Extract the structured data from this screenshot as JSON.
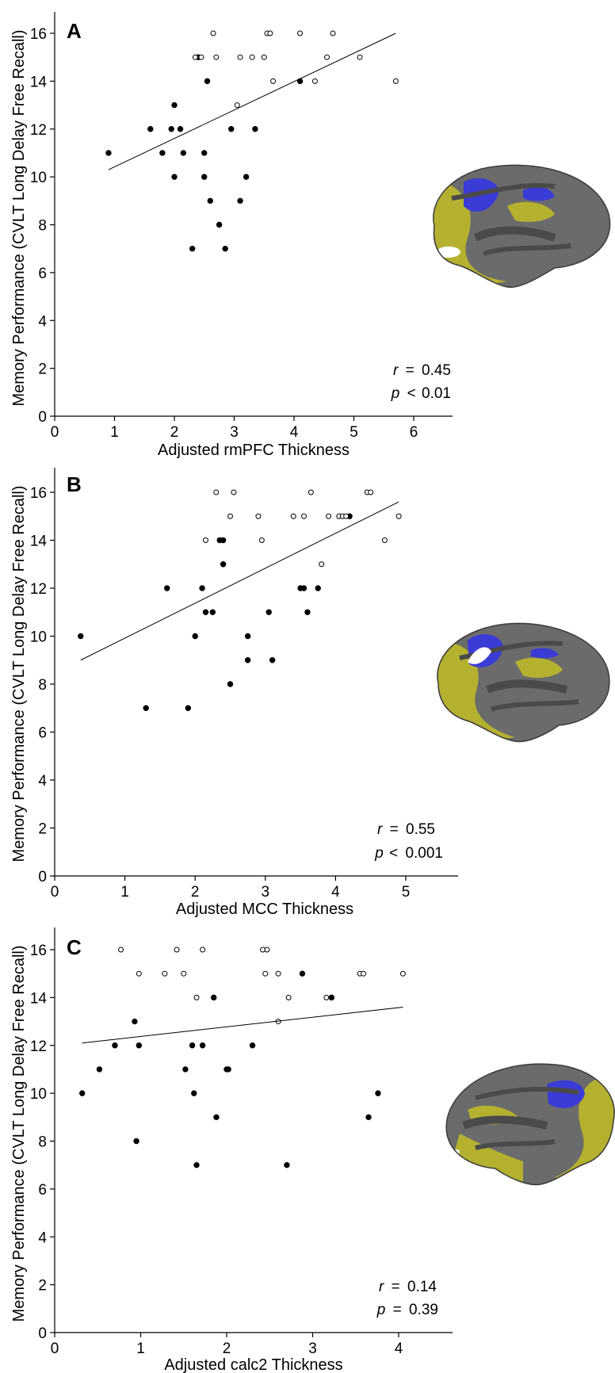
{
  "colors": {
    "filled_point": "#000000",
    "open_point": "#ffffff",
    "fit_line": "#000000",
    "brain_gray": "#6b6b6b",
    "brain_dark_gray": "#4a4a4a",
    "brain_yellow": "#b5b130",
    "brain_blue": "#3b3bd6",
    "brain_white": "#ffffff"
  },
  "chart_data": [
    {
      "type": "scatter",
      "panel": "A",
      "xlabel": "Adjusted rmPFC Thickness",
      "ylabel": "Memory Performance (CVLT Long Delay Free Recall)",
      "xlim": [
        0,
        6
      ],
      "ylim": [
        0,
        17
      ],
      "xticks": [
        0,
        1,
        2,
        3,
        4,
        5,
        6
      ],
      "yticks": [
        0,
        2,
        4,
        6,
        8,
        10,
        12,
        14,
        16
      ],
      "stats": {
        "r": "0.45",
        "r_prefix": "r",
        "r_sep": "=",
        "p": "0.01",
        "p_prefix": "p",
        "p_sep": "<"
      },
      "regression": {
        "x": [
          0.9,
          5.7
        ],
        "y": [
          10.3,
          16.0
        ]
      },
      "series": [
        {
          "marker": "filled",
          "points": [
            [
              0.9,
              11
            ],
            [
              1.6,
              12
            ],
            [
              1.8,
              11
            ],
            [
              1.95,
              12
            ],
            [
              2.0,
              13
            ],
            [
              2.0,
              10
            ],
            [
              2.1,
              12
            ],
            [
              2.15,
              11
            ],
            [
              2.3,
              7
            ],
            [
              2.4,
              15
            ],
            [
              2.5,
              11
            ],
            [
              2.5,
              10
            ],
            [
              2.55,
              14
            ],
            [
              2.6,
              9
            ],
            [
              2.75,
              8
            ],
            [
              2.85,
              7
            ],
            [
              2.95,
              12
            ],
            [
              3.1,
              9
            ],
            [
              3.2,
              10
            ],
            [
              3.35,
              12
            ],
            [
              4.1,
              14
            ]
          ]
        },
        {
          "marker": "open",
          "points": [
            [
              2.35,
              15
            ],
            [
              2.45,
              15
            ],
            [
              2.65,
              16
            ],
            [
              2.7,
              15
            ],
            [
              3.05,
              13
            ],
            [
              3.1,
              15
            ],
            [
              3.3,
              15
            ],
            [
              3.5,
              15
            ],
            [
              3.55,
              16
            ],
            [
              3.6,
              16
            ],
            [
              3.65,
              14
            ],
            [
              4.1,
              16
            ],
            [
              4.35,
              14
            ],
            [
              4.55,
              15
            ],
            [
              4.65,
              16
            ],
            [
              5.1,
              15
            ],
            [
              5.7,
              14
            ]
          ]
        }
      ]
    },
    {
      "type": "scatter",
      "panel": "B",
      "xlabel": "Adjusted MCC Thickness",
      "ylabel": "Memory Performance (CVLT Long Delay Free Recall)",
      "xlim": [
        0,
        5.2
      ],
      "ylim": [
        0,
        17
      ],
      "xticks": [
        0,
        1,
        2,
        3,
        4,
        5
      ],
      "yticks": [
        0,
        2,
        4,
        6,
        8,
        10,
        12,
        14,
        16
      ],
      "stats": {
        "r": "0.55",
        "r_prefix": "r",
        "r_sep": "=",
        "p": "0.001",
        "p_prefix": "p",
        "p_sep": "<"
      },
      "regression": {
        "x": [
          0.37,
          4.9
        ],
        "y": [
          9.0,
          15.6
        ]
      },
      "series": [
        {
          "marker": "filled",
          "points": [
            [
              0.37,
              10
            ],
            [
              1.3,
              7
            ],
            [
              1.6,
              12
            ],
            [
              1.9,
              7
            ],
            [
              2.0,
              10
            ],
            [
              2.1,
              12
            ],
            [
              2.15,
              11
            ],
            [
              2.25,
              11
            ],
            [
              2.35,
              14
            ],
            [
              2.4,
              14
            ],
            [
              2.4,
              13
            ],
            [
              2.5,
              8
            ],
            [
              2.75,
              9
            ],
            [
              2.75,
              10
            ],
            [
              3.05,
              11
            ],
            [
              3.1,
              9
            ],
            [
              3.5,
              12
            ],
            [
              3.55,
              12
            ],
            [
              3.6,
              11
            ],
            [
              3.75,
              12
            ],
            [
              4.2,
              15
            ]
          ]
        },
        {
          "marker": "open",
          "points": [
            [
              2.15,
              14
            ],
            [
              2.3,
              16
            ],
            [
              2.5,
              15
            ],
            [
              2.55,
              16
            ],
            [
              2.9,
              15
            ],
            [
              2.95,
              14
            ],
            [
              3.4,
              15
            ],
            [
              3.55,
              15
            ],
            [
              3.65,
              16
            ],
            [
              3.8,
              13
            ],
            [
              3.9,
              15
            ],
            [
              4.05,
              15
            ],
            [
              4.1,
              15
            ],
            [
              4.15,
              15
            ],
            [
              4.45,
              16
            ],
            [
              4.5,
              16
            ],
            [
              4.7,
              14
            ],
            [
              4.9,
              15
            ]
          ]
        }
      ]
    },
    {
      "type": "scatter",
      "panel": "C",
      "xlabel": "Adjusted calc2 Thickness",
      "ylabel": "Memory Performance (CVLT Long Delay Free Recall)",
      "xlim": [
        0,
        4.2
      ],
      "ylim": [
        0,
        17
      ],
      "xticks": [
        0,
        1,
        2,
        3,
        4
      ],
      "yticks": [
        0,
        2,
        4,
        6,
        8,
        10,
        12,
        14,
        16
      ],
      "stats": {
        "r": "0.14",
        "r_prefix": "r",
        "r_sep": "=",
        "p": "0.39",
        "p_prefix": "p",
        "p_sep": "="
      },
      "regression": {
        "x": [
          0.32,
          4.05
        ],
        "y": [
          12.1,
          13.6
        ]
      },
      "series": [
        {
          "marker": "filled",
          "points": [
            [
              0.32,
              10
            ],
            [
              0.52,
              11
            ],
            [
              0.7,
              12
            ],
            [
              0.93,
              13
            ],
            [
              0.95,
              8
            ],
            [
              0.98,
              12
            ],
            [
              1.52,
              11
            ],
            [
              1.6,
              12
            ],
            [
              1.62,
              10
            ],
            [
              1.65,
              7
            ],
            [
              1.72,
              12
            ],
            [
              1.85,
              14
            ],
            [
              1.88,
              9
            ],
            [
              2.0,
              11
            ],
            [
              2.02,
              11
            ],
            [
              2.3,
              12
            ],
            [
              2.7,
              7
            ],
            [
              2.88,
              15
            ],
            [
              3.22,
              14
            ],
            [
              3.65,
              9
            ],
            [
              3.76,
              10
            ]
          ]
        },
        {
          "marker": "open",
          "points": [
            [
              0.77,
              16
            ],
            [
              0.98,
              15
            ],
            [
              1.28,
              15
            ],
            [
              1.42,
              16
            ],
            [
              1.5,
              15
            ],
            [
              1.65,
              14
            ],
            [
              1.72,
              16
            ],
            [
              2.42,
              16
            ],
            [
              2.47,
              16
            ],
            [
              2.45,
              15
            ],
            [
              2.6,
              15
            ],
            [
              2.6,
              13
            ],
            [
              2.72,
              14
            ],
            [
              3.16,
              14
            ],
            [
              3.55,
              15
            ],
            [
              3.59,
              15
            ],
            [
              4.05,
              15
            ]
          ]
        }
      ]
    }
  ]
}
